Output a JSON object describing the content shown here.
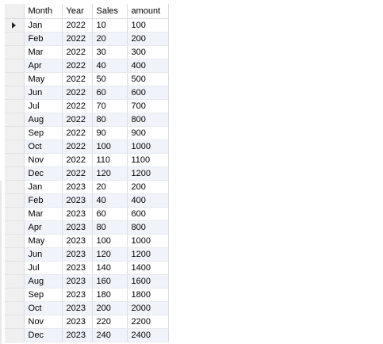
{
  "columns": [
    "Month",
    "Year",
    "Sales",
    "amount"
  ],
  "current_row_icon": "current-row-arrow-icon",
  "rows": [
    [
      "Jan",
      "2022",
      "10",
      "100"
    ],
    [
      "Feb",
      "2022",
      "20",
      "200"
    ],
    [
      "Mar",
      "2022",
      "30",
      "300"
    ],
    [
      "Apr",
      "2022",
      "40",
      "400"
    ],
    [
      "May",
      "2022",
      "50",
      "500"
    ],
    [
      "Jun",
      "2022",
      "60",
      "600"
    ],
    [
      "Jul",
      "2022",
      "70",
      "700"
    ],
    [
      "Aug",
      "2022",
      "80",
      "800"
    ],
    [
      "Sep",
      "2022",
      "90",
      "900"
    ],
    [
      "Oct",
      "2022",
      "100",
      "1000"
    ],
    [
      "Nov",
      "2022",
      "110",
      "1100"
    ],
    [
      "Dec",
      "2022",
      "120",
      "1200"
    ],
    [
      "Jan",
      "2023",
      "20",
      "200"
    ],
    [
      "Feb",
      "2023",
      "40",
      "400"
    ],
    [
      "Mar",
      "2023",
      "60",
      "600"
    ],
    [
      "Apr",
      "2023",
      "80",
      "800"
    ],
    [
      "May",
      "2023",
      "100",
      "1000"
    ],
    [
      "Jun",
      "2023",
      "120",
      "1200"
    ],
    [
      "Jul",
      "2023",
      "140",
      "1400"
    ],
    [
      "Aug",
      "2023",
      "160",
      "1600"
    ],
    [
      "Sep",
      "2023",
      "180",
      "1800"
    ],
    [
      "Oct",
      "2023",
      "200",
      "2000"
    ],
    [
      "Nov",
      "2023",
      "220",
      "2200"
    ],
    [
      "Dec",
      "2023",
      "240",
      "2400"
    ]
  ]
}
